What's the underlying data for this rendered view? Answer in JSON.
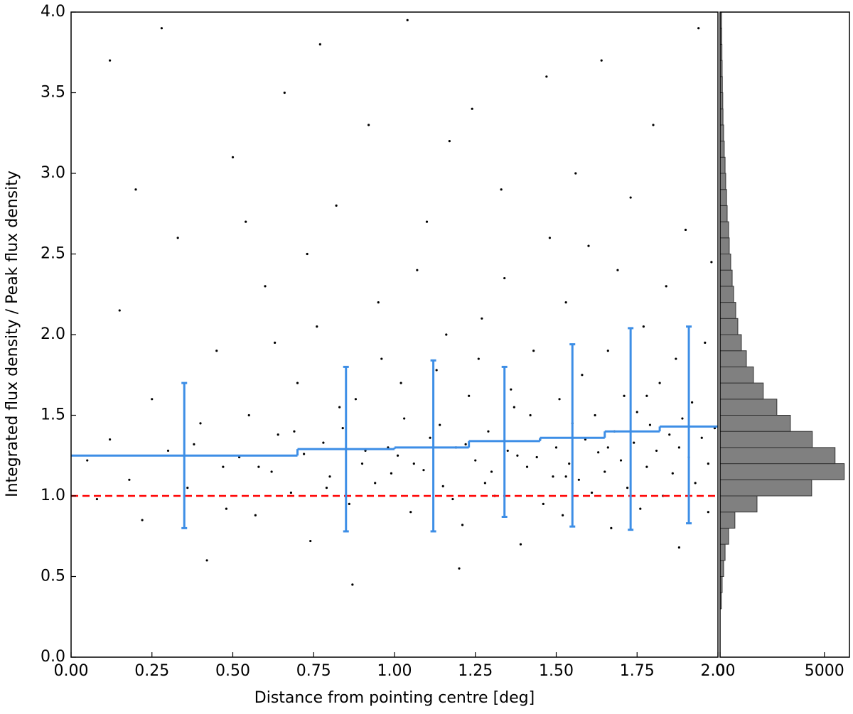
{
  "chart_data": [
    {
      "type": "scatter",
      "xlabel": "Distance from pointing centre [deg]",
      "ylabel": "Integrated flux density / Peak flux density",
      "xlim": [
        0,
        2
      ],
      "ylim": [
        0,
        4
      ],
      "xticks": [
        {
          "value": 0,
          "label": "0.00"
        },
        0.25,
        {
          "value": 0.5,
          "label": "0.50"
        },
        0.75,
        {
          "value": 1,
          "label": "1.00"
        },
        1.25,
        {
          "value": 1.5,
          "label": "1.50"
        },
        1.75,
        {
          "value": 2,
          "label": "2.00"
        }
      ],
      "yticks": [
        {
          "value": 0,
          "label": "0.0"
        },
        0.5,
        {
          "value": 1,
          "label": "1.0"
        },
        1.5,
        {
          "value": 2,
          "label": "2.0"
        },
        2.5,
        {
          "value": 3,
          "label": "3.0"
        },
        3.5,
        {
          "value": 4,
          "label": "4.0"
        }
      ],
      "point_color": "#000000",
      "points": [
        [
          0.05,
          1.22
        ],
        [
          0.08,
          0.98
        ],
        [
          0.12,
          1.35
        ],
        [
          0.15,
          2.15
        ],
        [
          0.18,
          1.1
        ],
        [
          0.22,
          0.85
        ],
        [
          0.25,
          1.6
        ],
        [
          0.28,
          3.9
        ],
        [
          0.3,
          1.28
        ],
        [
          0.33,
          2.6
        ],
        [
          0.36,
          1.05
        ],
        [
          0.4,
          1.45
        ],
        [
          0.42,
          0.6
        ],
        [
          0.45,
          1.9
        ],
        [
          0.47,
          1.18
        ],
        [
          0.5,
          3.1
        ],
        [
          0.12,
          3.7
        ],
        [
          0.2,
          2.9
        ],
        [
          0.38,
          1.32
        ],
        [
          0.48,
          0.92
        ],
        [
          0.52,
          1.24
        ],
        [
          0.55,
          1.5
        ],
        [
          0.57,
          0.88
        ],
        [
          0.6,
          2.3
        ],
        [
          0.62,
          1.15
        ],
        [
          0.64,
          1.38
        ],
        [
          0.66,
          3.5
        ],
        [
          0.68,
          1.02
        ],
        [
          0.7,
          1.7
        ],
        [
          0.72,
          1.26
        ],
        [
          0.74,
          0.72
        ],
        [
          0.76,
          2.05
        ],
        [
          0.78,
          1.33
        ],
        [
          0.8,
          1.12
        ],
        [
          0.82,
          2.8
        ],
        [
          0.84,
          1.42
        ],
        [
          0.86,
          0.95
        ],
        [
          0.88,
          1.6
        ],
        [
          0.9,
          1.2
        ],
        [
          0.92,
          3.3
        ],
        [
          0.94,
          1.08
        ],
        [
          0.96,
          1.85
        ],
        [
          0.98,
          1.3
        ],
        [
          0.58,
          1.18
        ],
        [
          0.63,
          1.95
        ],
        [
          0.69,
          1.4
        ],
        [
          0.73,
          2.5
        ],
        [
          0.79,
          1.05
        ],
        [
          0.83,
          1.55
        ],
        [
          0.87,
          0.45
        ],
        [
          0.91,
          1.28
        ],
        [
          0.95,
          2.2
        ],
        [
          0.99,
          1.14
        ],
        [
          0.54,
          2.7
        ],
        [
          0.77,
          3.8
        ],
        [
          1.01,
          1.25
        ],
        [
          1.03,
          1.48
        ],
        [
          1.05,
          0.9
        ],
        [
          1.07,
          2.4
        ],
        [
          1.09,
          1.16
        ],
        [
          1.11,
          1.36
        ],
        [
          1.13,
          1.78
        ],
        [
          1.15,
          1.06
        ],
        [
          1.17,
          3.2
        ],
        [
          1.19,
          1.3
        ],
        [
          1.21,
          0.82
        ],
        [
          1.23,
          1.62
        ],
        [
          1.25,
          1.22
        ],
        [
          1.27,
          2.1
        ],
        [
          1.29,
          1.4
        ],
        [
          1.31,
          1.0
        ],
        [
          1.33,
          2.9
        ],
        [
          1.35,
          1.28
        ],
        [
          1.37,
          1.55
        ],
        [
          1.39,
          0.7
        ],
        [
          1.41,
          1.18
        ],
        [
          1.43,
          1.9
        ],
        [
          1.45,
          1.35
        ],
        [
          1.47,
          3.6
        ],
        [
          1.49,
          1.12
        ],
        [
          1.02,
          1.7
        ],
        [
          1.06,
          1.2
        ],
        [
          1.1,
          2.7
        ],
        [
          1.14,
          1.44
        ],
        [
          1.18,
          0.98
        ],
        [
          1.22,
          1.32
        ],
        [
          1.26,
          1.85
        ],
        [
          1.3,
          1.15
        ],
        [
          1.34,
          2.35
        ],
        [
          1.38,
          1.25
        ],
        [
          1.42,
          1.5
        ],
        [
          1.46,
          0.95
        ],
        [
          1.48,
          2.6
        ],
        [
          1.04,
          3.95
        ],
        [
          1.2,
          0.55
        ],
        [
          1.28,
          1.08
        ],
        [
          1.36,
          1.66
        ],
        [
          1.44,
          1.24
        ],
        [
          1.16,
          2.0
        ],
        [
          1.24,
          3.4
        ],
        [
          1.5,
          1.3
        ],
        [
          1.51,
          1.6
        ],
        [
          1.52,
          0.88
        ],
        [
          1.53,
          2.2
        ],
        [
          1.54,
          1.2
        ],
        [
          1.55,
          1.45
        ],
        [
          1.56,
          3.0
        ],
        [
          1.57,
          1.1
        ],
        [
          1.58,
          1.75
        ],
        [
          1.59,
          1.35
        ],
        [
          1.6,
          2.55
        ],
        [
          1.61,
          1.02
        ],
        [
          1.62,
          1.5
        ],
        [
          1.63,
          1.27
        ],
        [
          1.64,
          3.7
        ],
        [
          1.65,
          1.15
        ],
        [
          1.66,
          1.9
        ],
        [
          1.67,
          0.8
        ],
        [
          1.68,
          1.4
        ],
        [
          1.69,
          2.4
        ],
        [
          1.7,
          1.22
        ],
        [
          1.71,
          1.62
        ],
        [
          1.72,
          1.05
        ],
        [
          1.73,
          2.85
        ],
        [
          1.74,
          1.33
        ],
        [
          1.75,
          1.52
        ],
        [
          1.76,
          0.92
        ],
        [
          1.77,
          2.05
        ],
        [
          1.78,
          1.18
        ],
        [
          1.79,
          1.44
        ],
        [
          1.8,
          3.3
        ],
        [
          1.81,
          1.28
        ],
        [
          1.82,
          1.7
        ],
        [
          1.83,
          1.0
        ],
        [
          1.84,
          2.3
        ],
        [
          1.85,
          1.38
        ],
        [
          1.86,
          1.14
        ],
        [
          1.87,
          1.85
        ],
        [
          1.88,
          0.68
        ],
        [
          1.89,
          1.48
        ],
        [
          1.9,
          2.65
        ],
        [
          1.91,
          1.24
        ],
        [
          1.92,
          1.58
        ],
        [
          1.93,
          1.08
        ],
        [
          1.94,
          3.9
        ],
        [
          1.95,
          1.36
        ],
        [
          1.96,
          1.95
        ],
        [
          1.97,
          1.2
        ],
        [
          1.98,
          2.45
        ],
        [
          1.99,
          1.42
        ],
        [
          1.53,
          1.12
        ],
        [
          1.66,
          1.3
        ],
        [
          1.78,
          1.62
        ],
        [
          1.88,
          1.3
        ],
        [
          1.97,
          0.9
        ]
      ],
      "binned": {
        "color": "#3d8ee6",
        "bin_edges": [
          0,
          0.7,
          1.0,
          1.23,
          1.45,
          1.65,
          1.82,
          2.0
        ],
        "values": [
          1.25,
          1.29,
          1.3,
          1.34,
          1.36,
          1.4,
          1.43
        ],
        "x": [
          0.35,
          0.85,
          1.12,
          1.34,
          1.55,
          1.73,
          1.91
        ],
        "lower": [
          0.8,
          0.78,
          0.78,
          0.87,
          0.81,
          0.79,
          0.83
        ],
        "upper": [
          1.7,
          1.8,
          1.84,
          1.8,
          1.94,
          2.04,
          2.05
        ]
      },
      "reference_line": {
        "y": 1,
        "color": "#ff0000",
        "style": "dashed"
      }
    },
    {
      "type": "histogram",
      "orientation": "horizontal",
      "bins": [
        0.3,
        0.4,
        0.5,
        0.6,
        0.7,
        0.8,
        0.9,
        1.0,
        1.1,
        1.2,
        1.3,
        1.4,
        1.5,
        1.6,
        1.7,
        1.8,
        1.9,
        2.0,
        2.1,
        2.2,
        2.3,
        2.4,
        2.5,
        2.6,
        2.7,
        2.8,
        2.9,
        3.0,
        3.1,
        3.2,
        3.3,
        3.4,
        3.5,
        3.6,
        3.7,
        3.8,
        3.9,
        4.0
      ],
      "counts": [
        60,
        100,
        170,
        240,
        410,
        710,
        1770,
        4390,
        5950,
        5510,
        4420,
        3370,
        2720,
        2070,
        1600,
        1260,
        1020,
        850,
        750,
        650,
        580,
        510,
        440,
        410,
        340,
        310,
        270,
        240,
        200,
        170,
        140,
        130,
        110,
        100,
        90,
        80,
        70
      ],
      "xlim": [
        0,
        6200
      ],
      "xticks": [
        0,
        5000
      ],
      "ylim": [
        0,
        4
      ],
      "color": "#808080",
      "edgecolor": "#333333"
    }
  ]
}
